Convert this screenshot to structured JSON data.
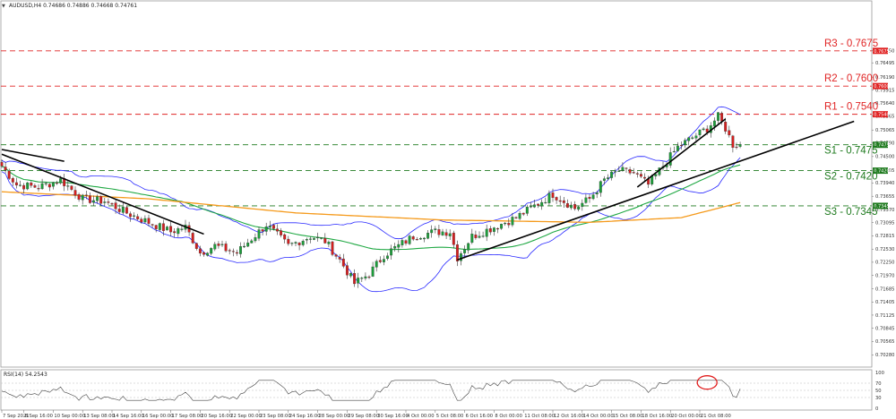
{
  "chart_data": {
    "type": "candlestick",
    "symbol_header": "AUDUSD,H4  0.74686 0.74886 0.74668 0.74761",
    "rsi_header": "RSI(14) 54.2543",
    "ylim": [
      0.70095,
      0.77775
    ],
    "y_ticks": [
      "0.76750",
      "0.76495",
      "0.76190",
      "0.75915",
      "0.75640",
      "0.75365",
      "0.75065",
      "0.74790",
      "0.74500",
      "0.74205",
      "0.73940",
      "0.73655",
      "0.73370",
      "0.73095",
      "0.72815",
      "0.72530",
      "0.72250",
      "0.71970",
      "0.71685",
      "0.71405",
      "0.71125",
      "0.70845",
      "0.70565",
      "0.70280"
    ],
    "x_ticks": [
      {
        "label": "7 Sep 2021",
        "i": 0
      },
      {
        "label": "8 Sep 16:00",
        "i": 6
      },
      {
        "label": "10 Sep 00:00",
        "i": 14
      },
      {
        "label": "13 Sep 08:00",
        "i": 22
      },
      {
        "label": "14 Sep 16:00",
        "i": 30
      },
      {
        "label": "16 Sep 00:00",
        "i": 38
      },
      {
        "label": "17 Sep 08:00",
        "i": 46
      },
      {
        "label": "20 Sep 16:00",
        "i": 54
      },
      {
        "label": "22 Sep 00:00",
        "i": 62
      },
      {
        "label": "23 Sep 08:00",
        "i": 70
      },
      {
        "label": "24 Sep 16:00",
        "i": 78
      },
      {
        "label": "28 Sep 00:00",
        "i": 86
      },
      {
        "label": "29 Sep 08:00",
        "i": 94
      },
      {
        "label": "30 Sep 16:00",
        "i": 102
      },
      {
        "label": "4 Oct 00:00",
        "i": 110
      },
      {
        "label": "5 Oct 08:00",
        "i": 118
      },
      {
        "label": "6 Oct 16:00",
        "i": 126
      },
      {
        "label": "8 Oct 00:00",
        "i": 134
      },
      {
        "label": "11 Oct 08:00",
        "i": 142
      },
      {
        "label": "12 Oct 16:00",
        "i": 150
      },
      {
        "label": "14 Oct 00:00",
        "i": 158
      },
      {
        "label": "15 Oct 08:00",
        "i": 166
      },
      {
        "label": "18 Oct 16:00",
        "i": 174
      },
      {
        "label": "20 Oct 00:00",
        "i": 182
      },
      {
        "label": "21 Oct 08:00",
        "i": 190
      }
    ],
    "levels": [
      {
        "name": "R3",
        "value": 0.7675,
        "label": "R3 - 0.7675",
        "tag": "0.76750",
        "color": "#e02424"
      },
      {
        "name": "R2",
        "value": 0.76,
        "label": "R2 - 0.7600",
        "tag": "0.76000",
        "color": "#e02424"
      },
      {
        "name": "R1",
        "value": 0.754,
        "label": "R1 - 0.7540",
        "tag": "0.75400",
        "color": "#e02424"
      },
      {
        "name": "S1",
        "value": 0.7475,
        "label": "S1 - 0.7475",
        "tag": "0.74750",
        "color": "#1e7a1e"
      },
      {
        "name": "S2",
        "value": 0.742,
        "label": "S2 - 0.7420",
        "tag": "0.74200",
        "color": "#1e7a1e"
      },
      {
        "name": "S3",
        "value": 0.7345,
        "label": "S3 - 0.7345",
        "tag": "0.73450",
        "color": "#1e7a1e"
      }
    ],
    "close_anchors": [
      [
        0,
        0.743
      ],
      [
        4,
        0.739
      ],
      [
        10,
        0.7385
      ],
      [
        16,
        0.74
      ],
      [
        22,
        0.736
      ],
      [
        28,
        0.7355
      ],
      [
        34,
        0.733
      ],
      [
        40,
        0.731
      ],
      [
        46,
        0.729
      ],
      [
        50,
        0.73
      ],
      [
        54,
        0.7245
      ],
      [
        58,
        0.726
      ],
      [
        64,
        0.7245
      ],
      [
        68,
        0.7275
      ],
      [
        72,
        0.7305
      ],
      [
        78,
        0.726
      ],
      [
        84,
        0.728
      ],
      [
        88,
        0.727
      ],
      [
        92,
        0.723
      ],
      [
        96,
        0.718
      ],
      [
        100,
        0.72
      ],
      [
        104,
        0.724
      ],
      [
        108,
        0.726
      ],
      [
        112,
        0.728
      ],
      [
        118,
        0.729
      ],
      [
        122,
        0.729
      ],
      [
        124,
        0.7235
      ],
      [
        128,
        0.728
      ],
      [
        134,
        0.73
      ],
      [
        140,
        0.732
      ],
      [
        146,
        0.735
      ],
      [
        150,
        0.737
      ],
      [
        156,
        0.734
      ],
      [
        160,
        0.736
      ],
      [
        164,
        0.74
      ],
      [
        168,
        0.742
      ],
      [
        172,
        0.7415
      ],
      [
        176,
        0.739
      ],
      [
        180,
        0.743
      ],
      [
        184,
        0.747
      ],
      [
        188,
        0.749
      ],
      [
        192,
        0.751
      ],
      [
        195,
        0.7535
      ],
      [
        197,
        0.751
      ],
      [
        199,
        0.7475
      ],
      [
        201,
        0.7476
      ]
    ],
    "trendlines": [
      {
        "name": "downtrend-1",
        "from": {
          "i": 0,
          "p": 0.7465
        },
        "to": {
          "i": 17,
          "p": 0.744
        }
      },
      {
        "name": "downtrend-2",
        "from": {
          "i": 0,
          "p": 0.7455
        },
        "to": {
          "i": 55,
          "p": 0.7285
        }
      },
      {
        "name": "uptrend-long",
        "from": {
          "i": 124,
          "p": 0.723
        },
        "to": {
          "i": 232,
          "p": 0.7525
        }
      },
      {
        "name": "uptrend-short",
        "from": {
          "i": 173,
          "p": 0.7385
        },
        "to": {
          "i": 197,
          "p": 0.753
        }
      }
    ],
    "ma_200_anchors": [
      [
        0,
        0.7375
      ],
      [
        40,
        0.736
      ],
      [
        80,
        0.733
      ],
      [
        120,
        0.7315
      ],
      [
        160,
        0.731
      ],
      [
        185,
        0.732
      ],
      [
        201,
        0.7352
      ]
    ],
    "indicators": [
      "Bollinger Bands",
      "Moving average (green)",
      "Moving average (orange)",
      "RSI(14)"
    ],
    "rsi_ticks": [
      "100",
      "70",
      "50",
      "30",
      "0"
    ],
    "rsi_current": 54.2543,
    "annotation": "red circle highlighting RSI overbought region"
  }
}
